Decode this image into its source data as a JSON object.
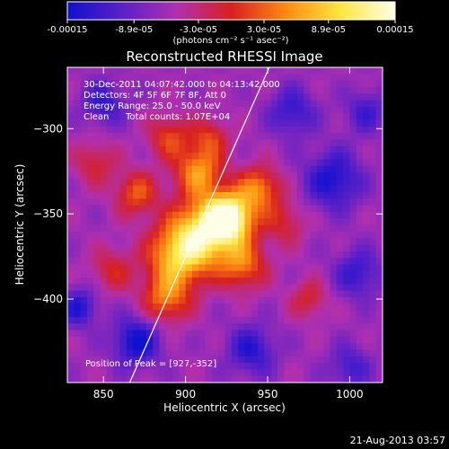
{
  "colorbar": {
    "tick_labels": [
      "-0.00015",
      "-8.9e-05",
      "-3.0e-05",
      "3.0e-05",
      "8.9e-05",
      "0.00015"
    ],
    "tick_values": [
      -0.00015,
      -8.9e-05,
      -3e-05,
      3e-05,
      8.9e-05,
      0.00015
    ],
    "range": [
      -0.00015,
      0.00015
    ],
    "unit_label": "(photons cm⁻² s⁻¹ asec⁻²)",
    "colors": [
      "#1010d0",
      "#5a20c8",
      "#b030b0",
      "#d82020",
      "#ff8a10",
      "#ffe640",
      "#ffffe8"
    ]
  },
  "chart_data": {
    "type": "heatmap",
    "title": "Reconstructed RHESSI Image",
    "xlabel": "Heliocentric X (arcsec)",
    "ylabel": "Heliocentric Y (arcsec)",
    "xlim": [
      828,
      1020
    ],
    "ylim": [
      -449,
      -264
    ],
    "x_ticks": [
      850,
      900,
      950,
      1000
    ],
    "x_tick_labels": [
      "850",
      "900",
      "950",
      "1000"
    ],
    "y_ticks": [
      -300,
      -350,
      -400
    ],
    "y_tick_labels": [
      "−300",
      "−350",
      "−400"
    ],
    "peak": [
      927,
      -352
    ],
    "limb_line": [
      [
        866,
        -449
      ],
      [
        951,
        -264
      ]
    ],
    "sources": [
      {
        "x": 927,
        "y": -352,
        "amp": 1.0,
        "s": 10
      },
      {
        "x": 912,
        "y": -360,
        "amp": 0.8,
        "s": 14
      },
      {
        "x": 895,
        "y": -375,
        "amp": 0.7,
        "s": 13
      },
      {
        "x": 888,
        "y": -400,
        "amp": 0.5,
        "s": 10
      },
      {
        "x": 908,
        "y": -325,
        "amp": 0.6,
        "s": 10
      },
      {
        "x": 945,
        "y": -335,
        "amp": 0.55,
        "s": 9
      },
      {
        "x": 870,
        "y": -338,
        "amp": 0.45,
        "s": 9
      },
      {
        "x": 935,
        "y": -380,
        "amp": 0.5,
        "s": 10
      },
      {
        "x": 890,
        "y": -305,
        "amp": 0.4,
        "s": 9
      },
      {
        "x": 915,
        "y": -305,
        "amp": 0.35,
        "s": 8
      },
      {
        "x": 960,
        "y": -355,
        "amp": 0.3,
        "s": 9
      },
      {
        "x": 845,
        "y": -320,
        "amp": 0.3,
        "s": 9
      },
      {
        "x": 855,
        "y": -383,
        "amp": 0.3,
        "s": 9
      },
      {
        "x": 975,
        "y": -400,
        "amp": 0.3,
        "s": 8
      },
      {
        "x": 990,
        "y": -330,
        "amp": -0.45,
        "s": 12
      },
      {
        "x": 870,
        "y": -425,
        "amp": -0.5,
        "s": 10
      },
      {
        "x": 835,
        "y": -405,
        "amp": -0.4,
        "s": 8
      },
      {
        "x": 940,
        "y": -430,
        "amp": -0.4,
        "s": 10
      },
      {
        "x": 1005,
        "y": -385,
        "amp": -0.35,
        "s": 10
      },
      {
        "x": 850,
        "y": -285,
        "amp": -0.35,
        "s": 9
      },
      {
        "x": 965,
        "y": -290,
        "amp": -0.35,
        "s": 10
      },
      {
        "x": 1010,
        "y": -290,
        "amp": -0.3,
        "s": 9
      },
      {
        "x": 1000,
        "y": -440,
        "amp": -0.3,
        "s": 9
      }
    ],
    "annotations": {
      "time_range": "30-Dec-2011 04:07:42.000 to 04:13:42.000",
      "detectors": "Detectors: 4F 5F 6F 7F 8F, Att 0",
      "energy_range": "Energy Range: 25.0 - 50.0 keV",
      "clean": "Clean",
      "total_counts": "Total counts: 1.07E+04",
      "peak_position": "Position of Peak = [927,-352]"
    }
  },
  "footer": {
    "timestamp": "21-Aug-2013 03:57"
  }
}
